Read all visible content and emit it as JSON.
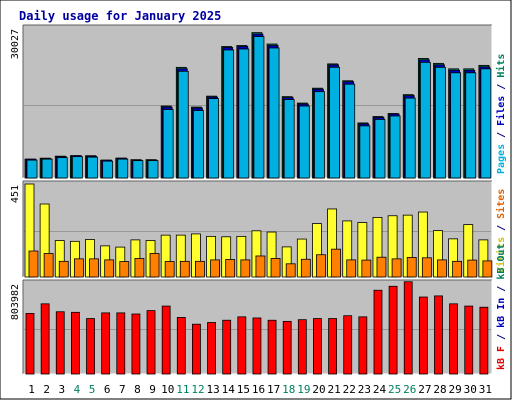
{
  "chart_data": [
    {
      "type": "bar",
      "title": "Daily usage for January 2025",
      "categories": [
        "1",
        "2",
        "3",
        "4",
        "5",
        "6",
        "7",
        "8",
        "9",
        "10",
        "11",
        "12",
        "13",
        "14",
        "15",
        "16",
        "17",
        "18",
        "19",
        "20",
        "21",
        "22",
        "23",
        "24",
        "25",
        "26",
        "27",
        "28",
        "29",
        "30",
        "31"
      ],
      "weekend_days": [
        "4",
        "5",
        "11",
        "12",
        "18",
        "19",
        "25",
        "26"
      ],
      "y_max_label": "30027",
      "ylim": [
        0,
        30027
      ],
      "right_labels": [
        {
          "text": "Pages",
          "color": "#00b0e0"
        },
        {
          "text": " / ",
          "color": "#000080"
        },
        {
          "text": "Files",
          "color": "#0000c0"
        },
        {
          "text": " / ",
          "color": "#000080"
        },
        {
          "text": "Hits",
          "color": "#008060"
        }
      ],
      "series": [
        {
          "name": "Hits",
          "color": "#008060",
          "values": [
            3800,
            4000,
            4400,
            4500,
            4500,
            3600,
            4000,
            3700,
            3700,
            14500,
            22300,
            14300,
            16500,
            26500,
            26700,
            29300,
            27000,
            16400,
            15100,
            18100,
            23000,
            19600,
            11100,
            12400,
            13000,
            16800,
            24100,
            23100,
            22000,
            22000,
            22700
          ]
        },
        {
          "name": "Files",
          "color": "#0000c0",
          "values": [
            3800,
            3900,
            4300,
            4500,
            4400,
            3600,
            4000,
            3600,
            3600,
            14300,
            22000,
            14100,
            16300,
            26300,
            26500,
            29000,
            26700,
            16200,
            14900,
            17900,
            22800,
            19400,
            10900,
            12200,
            12900,
            16600,
            23800,
            22800,
            21700,
            21700,
            22400
          ]
        },
        {
          "name": "Pages",
          "color": "#00b0e0",
          "values": [
            3600,
            3800,
            4100,
            4300,
            4200,
            3400,
            3800,
            3500,
            3500,
            13800,
            21500,
            13600,
            16000,
            25800,
            26000,
            28500,
            26200,
            15800,
            14500,
            17400,
            22300,
            18900,
            10500,
            11800,
            12500,
            16100,
            23300,
            22300,
            21200,
            21200,
            22000
          ]
        }
      ]
    },
    {
      "type": "bar",
      "y_max_label": "451",
      "ylim": [
        0,
        451
      ],
      "right_labels": [
        {
          "text": "Visits",
          "color": "#d0c000"
        },
        {
          "text": " / ",
          "color": "#000080"
        },
        {
          "text": "Sites",
          "color": "#e06000"
        }
      ],
      "series": [
        {
          "name": "Visits",
          "color": "#ffff30",
          "values": [
            451,
            354,
            177,
            173,
            182,
            151,
            145,
            180,
            177,
            203,
            203,
            209,
            197,
            195,
            197,
            224,
            218,
            146,
            184,
            259,
            330,
            272,
            264,
            289,
            297,
            300,
            315,
            225,
            185,
            254,
            180
          ]
        },
        {
          "name": "Sites",
          "color": "#ff8000",
          "values": [
            126,
            114,
            76,
            88,
            88,
            83,
            75,
            90,
            114,
            75,
            76,
            76,
            83,
            85,
            83,
            102,
            90,
            64,
            86,
            108,
            135,
            83,
            82,
            96,
            88,
            95,
            93,
            83,
            76,
            82,
            78
          ]
        }
      ]
    },
    {
      "type": "bar",
      "y_max_label": "803982",
      "ylim": [
        0,
        803982
      ],
      "right_labels": [
        {
          "text": "kB F",
          "color": "#e00000"
        },
        {
          "text": " / ",
          "color": "#000080"
        },
        {
          "text": "kB In",
          "color": "#0000c0"
        },
        {
          "text": " / ",
          "color": "#000080"
        },
        {
          "text": "kB Out",
          "color": "#008060"
        }
      ],
      "series": [
        {
          "name": "kB F",
          "color": "#ff0000",
          "values": [
            535000,
            620000,
            550000,
            545000,
            490000,
            540000,
            540000,
            530000,
            560000,
            600000,
            500000,
            440000,
            455000,
            475000,
            505000,
            495000,
            475000,
            465000,
            480000,
            490000,
            490000,
            515000,
            505000,
            740000,
            775000,
            815000,
            680000,
            690000,
            620000,
            600000,
            590000
          ]
        }
      ]
    }
  ]
}
